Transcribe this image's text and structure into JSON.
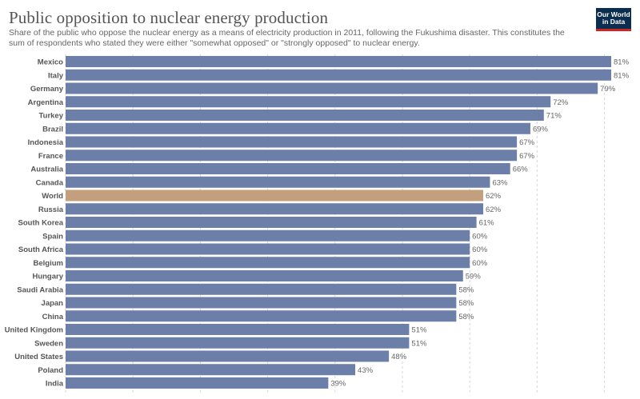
{
  "header": {
    "title": "Public opposition to nuclear energy production",
    "subtitle": "Share of the public who oppose the nuclear energy as a means of electricity production in 2011, following the Fukushima disaster. This constitutes the sum of respondents who stated they were either \"somewhat opposed\" or \"strongly opposed\" to nuclear energy.",
    "logo_line1": "Our World",
    "logo_line2": "in Data"
  },
  "colors": {
    "bar": "#6b7fa8",
    "highlight": "#c39f7e",
    "logo_bg": "#0b2d4f",
    "logo_accent": "#ce261e"
  },
  "chart_data": {
    "type": "bar",
    "orientation": "horizontal",
    "unit": "%",
    "xlim": [
      0,
      81
    ],
    "grid": true,
    "highlight": "World",
    "categories": [
      "Mexico",
      "Italy",
      "Germany",
      "Argentina",
      "Turkey",
      "Brazil",
      "Indonesia",
      "France",
      "Australia",
      "Canada",
      "World",
      "Russia",
      "South Korea",
      "Spain",
      "South Africa",
      "Belgium",
      "Hungary",
      "Saudi Arabia",
      "Japan",
      "China",
      "United Kingdom",
      "Sweden",
      "United States",
      "Poland",
      "India"
    ],
    "values": [
      81,
      81,
      79,
      72,
      71,
      69,
      67,
      67,
      66,
      63,
      62,
      62,
      61,
      60,
      60,
      60,
      59,
      58,
      58,
      58,
      51,
      51,
      48,
      43,
      39
    ],
    "title": "Public opposition to nuclear energy production",
    "xlabel": "",
    "ylabel": ""
  }
}
